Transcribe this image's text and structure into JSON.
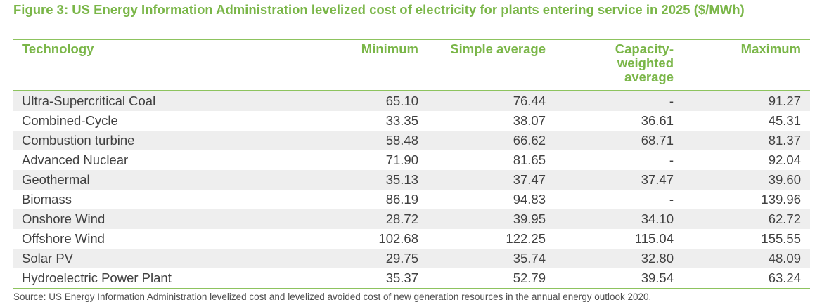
{
  "title": "Figure 3: US Energy Information Administration levelized cost of electricity for plants entering service in 2025 ($/MWh)",
  "columns": {
    "technology": "Technology",
    "minimum": "Minimum",
    "simple_average": "Simple average",
    "capacity_weighted_average": "Capacity-\nweighted\naverage",
    "maximum": "Maximum"
  },
  "rows": [
    {
      "technology": "Ultra-Supercritical Coal",
      "minimum": "65.10",
      "simple_average": "76.44",
      "capacity_weighted_average": "-",
      "maximum": "91.27"
    },
    {
      "technology": "Combined-Cycle",
      "minimum": "33.35",
      "simple_average": "38.07",
      "capacity_weighted_average": "36.61",
      "maximum": "45.31"
    },
    {
      "technology": "Combustion turbine",
      "minimum": "58.48",
      "simple_average": "66.62",
      "capacity_weighted_average": "68.71",
      "maximum": "81.37"
    },
    {
      "technology": "Advanced Nuclear",
      "minimum": "71.90",
      "simple_average": "81.65",
      "capacity_weighted_average": "-",
      "maximum": "92.04"
    },
    {
      "technology": "Geothermal",
      "minimum": "35.13",
      "simple_average": "37.47",
      "capacity_weighted_average": "37.47",
      "maximum": "39.60"
    },
    {
      "technology": "Biomass",
      "minimum": "86.19",
      "simple_average": "94.83",
      "capacity_weighted_average": "-",
      "maximum": "139.96"
    },
    {
      "technology": "Onshore Wind",
      "minimum": "28.72",
      "simple_average": "39.95",
      "capacity_weighted_average": "34.10",
      "maximum": "62.72"
    },
    {
      "technology": "Offshore Wind",
      "minimum": "102.68",
      "simple_average": "122.25",
      "capacity_weighted_average": "115.04",
      "maximum": "155.55"
    },
    {
      "technology": "Solar PV",
      "minimum": "29.75",
      "simple_average": "35.74",
      "capacity_weighted_average": "32.80",
      "maximum": "48.09"
    },
    {
      "technology": "Hydroelectric Power Plant",
      "minimum": "35.37",
      "simple_average": "52.79",
      "capacity_weighted_average": "39.54",
      "maximum": "63.24"
    }
  ],
  "source": "Source: US Energy Information Administration levelized cost and levelized avoided cost of new generation resources in the annual energy outlook 2020.",
  "colors": {
    "accent": "#7ab648",
    "rule": "#8dc35e",
    "row_shade": "#eeeeee",
    "text": "#404040"
  }
}
